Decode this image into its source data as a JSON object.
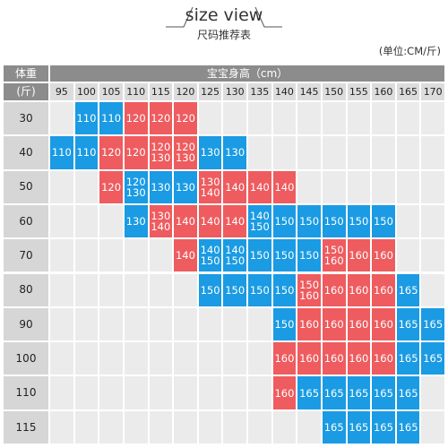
{
  "header": {
    "title": "size view",
    "subtitle": "尺码推荐表",
    "unit": "(单位:CM/斤)"
  },
  "colors": {
    "blue": "#1a9be3",
    "red": "#ee5c5f"
  },
  "table": {
    "corner_top": "体重",
    "corner_bottom": "(斤)",
    "height_title": "宝宝身高（cm）",
    "heights": [
      "95",
      "100",
      "105",
      "110",
      "115",
      "120",
      "125",
      "130",
      "135",
      "140",
      "145",
      "150",
      "155",
      "160",
      "165",
      "170"
    ],
    "rows": [
      {
        "weight": "30",
        "cells": [
          null,
          {
            "lines": [
              "110"
            ],
            "tone": "blue"
          },
          {
            "lines": [
              "110"
            ],
            "tone": "blue"
          },
          {
            "lines": [
              "120"
            ],
            "tone": "red"
          },
          {
            "lines": [
              "120"
            ],
            "tone": "red"
          },
          {
            "lines": [
              "120"
            ],
            "tone": "red"
          },
          null,
          null,
          null,
          null,
          null,
          null,
          null,
          null,
          null,
          null
        ]
      },
      {
        "weight": "40",
        "cells": [
          {
            "lines": [
              "110"
            ],
            "tone": "blue"
          },
          {
            "lines": [
              "110"
            ],
            "tone": "blue"
          },
          {
            "lines": [
              "120"
            ],
            "tone": "red"
          },
          {
            "lines": [
              "120"
            ],
            "tone": "red"
          },
          {
            "lines": [
              "120",
              "130"
            ],
            "tone": "red"
          },
          {
            "lines": [
              "120",
              "130"
            ],
            "tone": "red"
          },
          {
            "lines": [
              "130"
            ],
            "tone": "blue"
          },
          {
            "lines": [
              "130"
            ],
            "tone": "blue"
          },
          null,
          null,
          null,
          null,
          null,
          null,
          null,
          null
        ]
      },
      {
        "weight": "50",
        "cells": [
          null,
          null,
          {
            "lines": [
              "120"
            ],
            "tone": "red"
          },
          {
            "lines": [
              "120",
              "130"
            ],
            "tone": "blue"
          },
          {
            "lines": [
              "130"
            ],
            "tone": "blue"
          },
          {
            "lines": [
              "130"
            ],
            "tone": "blue"
          },
          {
            "lines": [
              "130",
              "140"
            ],
            "tone": "red"
          },
          {
            "lines": [
              "140"
            ],
            "tone": "red"
          },
          {
            "lines": [
              "140"
            ],
            "tone": "red"
          },
          {
            "lines": [
              "140"
            ],
            "tone": "red"
          },
          null,
          null,
          null,
          null,
          null,
          null
        ]
      },
      {
        "weight": "60",
        "cells": [
          null,
          null,
          null,
          {
            "lines": [
              "130"
            ],
            "tone": "blue"
          },
          {
            "lines": [
              "130",
              "140"
            ],
            "tone": "red"
          },
          {
            "lines": [
              "140"
            ],
            "tone": "red"
          },
          {
            "lines": [
              "140"
            ],
            "tone": "red"
          },
          {
            "lines": [
              "140"
            ],
            "tone": "red"
          },
          {
            "lines": [
              "140",
              "150"
            ],
            "tone": "blue"
          },
          {
            "lines": [
              "150"
            ],
            "tone": "blue"
          },
          {
            "lines": [
              "150"
            ],
            "tone": "blue"
          },
          {
            "lines": [
              "150"
            ],
            "tone": "blue"
          },
          {
            "lines": [
              "150"
            ],
            "tone": "blue"
          },
          {
            "lines": [
              "150"
            ],
            "tone": "blue"
          },
          null,
          null
        ]
      },
      {
        "weight": "70",
        "cells": [
          null,
          null,
          null,
          null,
          null,
          {
            "lines": [
              "140"
            ],
            "tone": "red"
          },
          {
            "lines": [
              "140",
              "150"
            ],
            "tone": "blue"
          },
          {
            "lines": [
              "140",
              "150"
            ],
            "tone": "blue"
          },
          {
            "lines": [
              "150"
            ],
            "tone": "blue"
          },
          {
            "lines": [
              "150"
            ],
            "tone": "blue"
          },
          {
            "lines": [
              "150"
            ],
            "tone": "blue"
          },
          {
            "lines": [
              "150",
              "160"
            ],
            "tone": "red"
          },
          {
            "lines": [
              "160"
            ],
            "tone": "red"
          },
          {
            "lines": [
              "160"
            ],
            "tone": "red"
          },
          null,
          null
        ]
      },
      {
        "weight": "80",
        "cells": [
          null,
          null,
          null,
          null,
          null,
          null,
          {
            "lines": [
              "150"
            ],
            "tone": "blue"
          },
          {
            "lines": [
              "150"
            ],
            "tone": "blue"
          },
          {
            "lines": [
              "150"
            ],
            "tone": "blue"
          },
          {
            "lines": [
              "150"
            ],
            "tone": "blue"
          },
          {
            "lines": [
              "150",
              "160"
            ],
            "tone": "red"
          },
          {
            "lines": [
              "160"
            ],
            "tone": "red"
          },
          {
            "lines": [
              "160"
            ],
            "tone": "red"
          },
          {
            "lines": [
              "160"
            ],
            "tone": "red"
          },
          {
            "lines": [
              "165"
            ],
            "tone": "blue"
          },
          null
        ]
      },
      {
        "weight": "90",
        "cells": [
          null,
          null,
          null,
          null,
          null,
          null,
          null,
          null,
          null,
          {
            "lines": [
              "150"
            ],
            "tone": "blue"
          },
          {
            "lines": [
              "160"
            ],
            "tone": "red"
          },
          {
            "lines": [
              "160"
            ],
            "tone": "red"
          },
          {
            "lines": [
              "160"
            ],
            "tone": "red"
          },
          {
            "lines": [
              "160"
            ],
            "tone": "red"
          },
          {
            "lines": [
              "165"
            ],
            "tone": "blue"
          },
          {
            "lines": [
              "165"
            ],
            "tone": "blue"
          }
        ]
      },
      {
        "weight": "100",
        "cells": [
          null,
          null,
          null,
          null,
          null,
          null,
          null,
          null,
          null,
          {
            "lines": [
              "160"
            ],
            "tone": "red"
          },
          {
            "lines": [
              "160"
            ],
            "tone": "red"
          },
          {
            "lines": [
              "160"
            ],
            "tone": "red"
          },
          {
            "lines": [
              "160"
            ],
            "tone": "red"
          },
          {
            "lines": [
              "160"
            ],
            "tone": "red"
          },
          {
            "lines": [
              "165"
            ],
            "tone": "blue"
          },
          {
            "lines": [
              "165"
            ],
            "tone": "blue"
          }
        ]
      },
      {
        "weight": "110",
        "cells": [
          null,
          null,
          null,
          null,
          null,
          null,
          null,
          null,
          null,
          {
            "lines": [
              "160"
            ],
            "tone": "red"
          },
          {
            "lines": [
              "165"
            ],
            "tone": "blue"
          },
          {
            "lines": [
              "165"
            ],
            "tone": "blue"
          },
          {
            "lines": [
              "165"
            ],
            "tone": "blue"
          },
          {
            "lines": [
              "165"
            ],
            "tone": "blue"
          },
          {
            "lines": [
              "165"
            ],
            "tone": "blue"
          },
          null
        ]
      },
      {
        "weight": "115",
        "cells": [
          null,
          null,
          null,
          null,
          null,
          null,
          null,
          null,
          null,
          null,
          null,
          {
            "lines": [
              "165"
            ],
            "tone": "blue"
          },
          {
            "lines": [
              "165"
            ],
            "tone": "blue"
          },
          {
            "lines": [
              "165"
            ],
            "tone": "blue"
          },
          {
            "lines": [
              "165"
            ],
            "tone": "blue"
          },
          null
        ]
      }
    ]
  }
}
